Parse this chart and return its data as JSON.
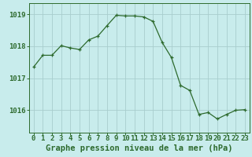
{
  "x": [
    0,
    1,
    2,
    3,
    4,
    5,
    6,
    7,
    8,
    9,
    10,
    11,
    12,
    13,
    14,
    15,
    16,
    17,
    18,
    19,
    20,
    21,
    22,
    23
  ],
  "y": [
    1017.35,
    1017.72,
    1017.72,
    1018.02,
    1017.95,
    1017.9,
    1018.2,
    1018.32,
    1018.65,
    1018.97,
    1018.95,
    1018.95,
    1018.92,
    1018.78,
    1018.12,
    1017.65,
    1016.78,
    1016.62,
    1015.87,
    1015.93,
    1015.73,
    1015.87,
    1016.0,
    1016.02
  ],
  "line_color": "#2d6a2d",
  "marker_color": "#2d6a2d",
  "bg_color": "#c8ecec",
  "grid_color": "#a8cece",
  "ylabel_ticks": [
    1016,
    1017,
    1018,
    1019
  ],
  "xlabel": "Graphe pression niveau de la mer (hPa)",
  "xlabel_fontsize": 7.5,
  "tick_fontsize": 6.5,
  "ylim": [
    1015.3,
    1019.35
  ],
  "xlim": [
    -0.5,
    23.5
  ]
}
